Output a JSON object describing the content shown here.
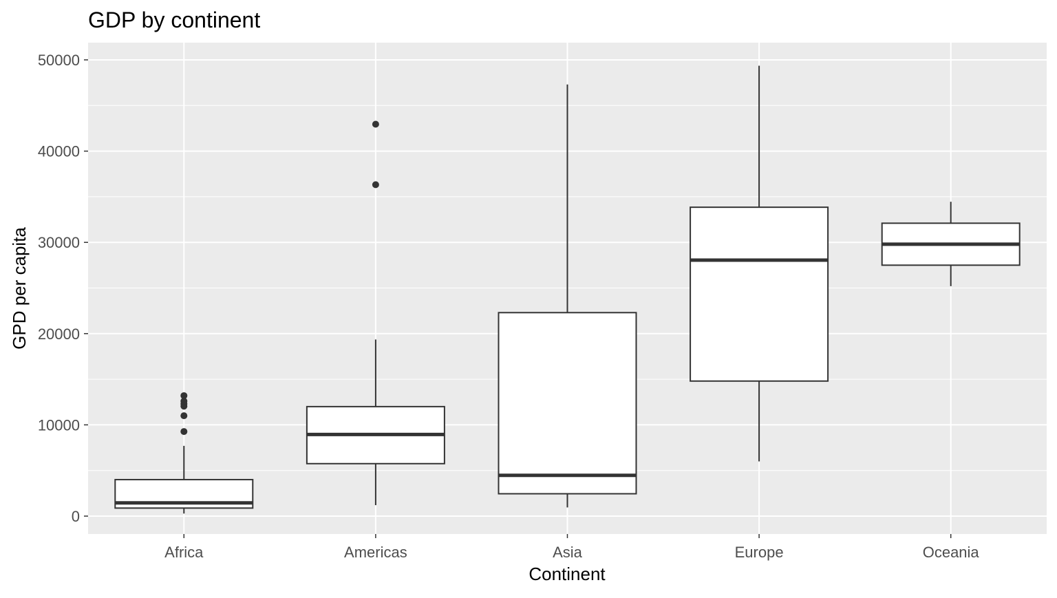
{
  "chart_data": {
    "type": "boxplot",
    "title": "GDP by continent",
    "xlabel": "Continent",
    "ylabel": "GPD per capita",
    "ylim": [
      -2000,
      52000
    ],
    "yticks": [
      0,
      10000,
      20000,
      30000,
      40000,
      50000
    ],
    "ytick_labels": [
      "0",
      "10000",
      "20000",
      "30000",
      "40000",
      "50000"
    ],
    "grid": true,
    "colors": {
      "panel": "#ebebeb",
      "grid": "#ffffff",
      "box_fill": "#ffffff",
      "box_line": "#333333",
      "text": "#4d4d4d"
    },
    "categories": [
      "Africa",
      "Americas",
      "Asia",
      "Europe",
      "Oceania"
    ],
    "boxes": [
      {
        "category": "Africa",
        "whisker_low": 280,
        "q1": 880,
        "median": 1450,
        "q3": 4000,
        "whisker_high": 7700,
        "outliers": [
          9270,
          11000,
          12050,
          12300,
          12600,
          13200
        ]
      },
      {
        "category": "Americas",
        "whisker_low": 1200,
        "q1": 5750,
        "median": 8950,
        "q3": 12000,
        "whisker_high": 19350,
        "outliers": [
          36320,
          42950
        ]
      },
      {
        "category": "Asia",
        "whisker_low": 950,
        "q1": 2450,
        "median": 4470,
        "q3": 22300,
        "whisker_high": 47300,
        "outliers": []
      },
      {
        "category": "Europe",
        "whisker_low": 6000,
        "q1": 14800,
        "median": 28050,
        "q3": 33850,
        "whisker_high": 49360,
        "outliers": []
      },
      {
        "category": "Oceania",
        "whisker_low": 25200,
        "q1": 27500,
        "median": 29800,
        "q3": 32100,
        "whisker_high": 34450,
        "outliers": []
      }
    ]
  }
}
